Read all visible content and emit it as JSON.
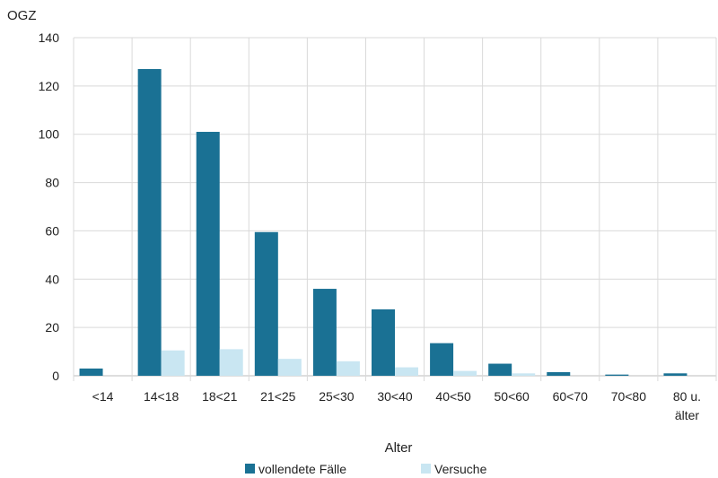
{
  "chart_data": {
    "type": "bar",
    "ylabel": "OGZ",
    "xlabel": "Alter",
    "ylim": [
      0,
      140
    ],
    "yticks": [
      0,
      20,
      40,
      60,
      80,
      100,
      120,
      140
    ],
    "grid": true,
    "legend_position": "bottom",
    "categories": [
      "<14",
      "14<18",
      "18<21",
      "21<25",
      "25<30",
      "30<40",
      "40<50",
      "50<60",
      "60<70",
      "70<80",
      "80 u.\nälter"
    ],
    "series": [
      {
        "name": "vollendete Fälle",
        "color": "#1a7194",
        "values": [
          3,
          127,
          101,
          59.5,
          36,
          27.5,
          13.5,
          5,
          1.5,
          0.5,
          1
        ]
      },
      {
        "name": "Versuche",
        "color": "#c9e6f2",
        "values": [
          0,
          10.5,
          11,
          7,
          6,
          3.5,
          2,
          1,
          0,
          0,
          0
        ]
      }
    ]
  }
}
